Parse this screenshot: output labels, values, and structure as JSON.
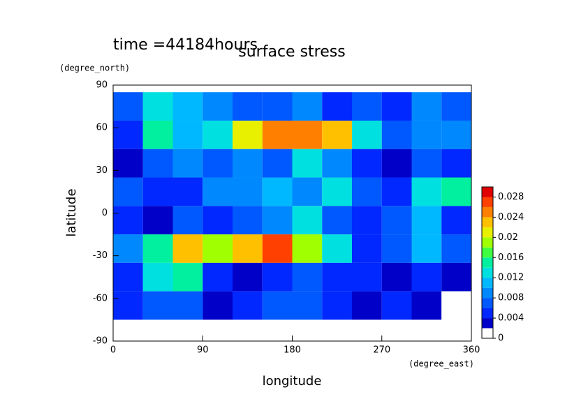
{
  "chart_data": {
    "type": "heatmap",
    "title": "surface stress",
    "subtitle": "time =44184hours",
    "x_label": "longitude",
    "x_unit": "(degree_east)",
    "y_label": "latitude",
    "y_unit": "(degree_north)",
    "xlim": [
      0,
      360
    ],
    "ylim": [
      -90,
      90
    ],
    "xticks": [
      0,
      90,
      180,
      270,
      360
    ],
    "yticks": [
      -90,
      -60,
      -30,
      0,
      30,
      60,
      90
    ],
    "x": [
      15,
      45,
      75,
      105,
      135,
      165,
      195,
      225,
      255,
      285,
      315,
      345
    ],
    "y": [
      75,
      55,
      35,
      15,
      -5,
      -25,
      -45,
      -65
    ],
    "cell": [
      30,
      20
    ],
    "z": [
      [
        0.006,
        0.012,
        0.01,
        0.008,
        0.006,
        0.006,
        0.008,
        0.004,
        0.006,
        0.004,
        0.008,
        0.006
      ],
      [
        0.004,
        0.014,
        0.01,
        0.012,
        0.02,
        0.024,
        0.024,
        0.022,
        0.012,
        0.006,
        0.008,
        0.008
      ],
      [
        0.002,
        0.006,
        0.008,
        0.006,
        0.008,
        0.006,
        0.012,
        0.008,
        0.004,
        0.002,
        0.006,
        0.004
      ],
      [
        0.006,
        0.004,
        0.004,
        0.008,
        0.008,
        0.01,
        0.008,
        0.012,
        0.006,
        0.004,
        0.012,
        0.014
      ],
      [
        0.004,
        0.002,
        0.006,
        0.004,
        0.006,
        0.008,
        0.012,
        0.006,
        0.004,
        0.006,
        0.01,
        0.004
      ],
      [
        0.008,
        0.014,
        0.022,
        0.018,
        0.022,
        0.026,
        0.018,
        0.012,
        0.004,
        0.006,
        0.01,
        0.006
      ],
      [
        0.004,
        0.012,
        0.014,
        0.004,
        0.002,
        0.004,
        0.006,
        0.004,
        0.004,
        0.002,
        0.004,
        0.002
      ],
      [
        0.004,
        0.006,
        0.006,
        0.002,
        0.004,
        0.006,
        0.006,
        0.004,
        0.002,
        0.004,
        0.002,
        0.0
      ]
    ],
    "clim": [
      0,
      0.03
    ],
    "cticks": [
      0,
      0.004,
      0.008,
      0.012,
      0.016,
      0.02,
      0.024,
      0.028
    ],
    "levels": [
      0,
      0.002,
      0.004,
      0.006,
      0.008,
      0.01,
      0.012,
      0.014,
      0.016,
      0.018,
      0.02,
      0.022,
      0.024,
      0.026,
      0.028,
      0.03
    ],
    "colors": [
      "#ffffff",
      "#0000c8",
      "#0028ff",
      "#0058ff",
      "#0088ff",
      "#00b8ff",
      "#00e0e0",
      "#00f0a0",
      "#40ff40",
      "#a0ff00",
      "#e8f000",
      "#ffc000",
      "#ff8000",
      "#ff4000",
      "#e00000"
    ]
  }
}
